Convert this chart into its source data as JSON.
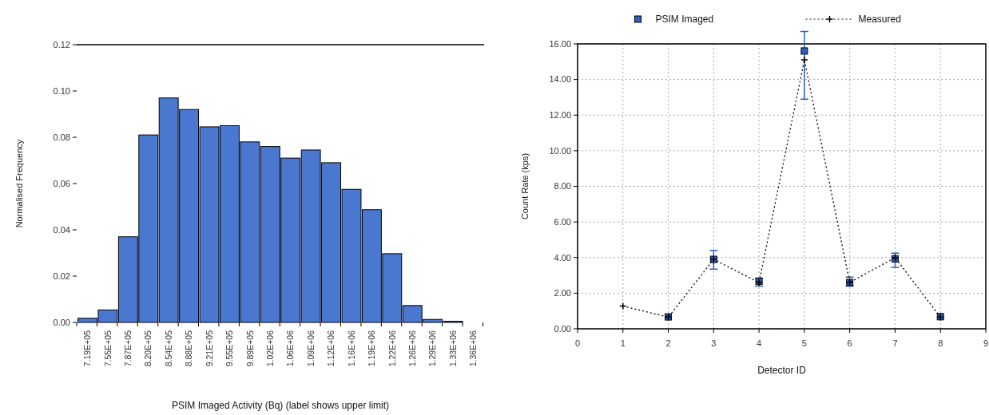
{
  "chart_data": [
    {
      "type": "bar",
      "xlabel": "PSIM Imaged Activity (Bq)  (label shows upper limit)",
      "ylabel": "Normalised Frequency",
      "categories": [
        "7.19E+05",
        "7.55E+05",
        "7.87E+05",
        "8.20E+05",
        "8.54E+05",
        "8.88E+05",
        "9.21E+05",
        "9.55E+05",
        "9.89E+05",
        "1.02E+06",
        "1.06E+06",
        "1.09E+06",
        "1.12E+06",
        "1.16E+06",
        "1.19E+06",
        "1.22E+06",
        "1.26E+06",
        "1.29E+06",
        "1.33E+06",
        "1.36E+06"
      ],
      "values": [
        0.0018,
        0.0054,
        0.037,
        0.081,
        0.097,
        0.092,
        0.0845,
        0.085,
        0.078,
        0.076,
        0.071,
        0.0745,
        0.069,
        0.0575,
        0.0487,
        0.0297,
        0.0073,
        0.0013,
        0.0005,
        0
      ],
      "color": "#4a78d0",
      "ylim": [
        0,
        0.12
      ],
      "yticks": [
        {
          "value": 0,
          "label": "0.00"
        },
        {
          "value": 0.02,
          "label": "0.02"
        },
        {
          "value": 0.04,
          "label": "0.04"
        },
        {
          "value": 0.06,
          "label": "0.06"
        },
        {
          "value": 0.08,
          "label": "0.08"
        },
        {
          "value": 0.1,
          "label": "0.10"
        },
        {
          "value": 0.12,
          "label": "0.12"
        }
      ],
      "grid": false
    },
    {
      "type": "scatter",
      "xlabel": "Detector ID",
      "ylabel": "Count Rate (kps)",
      "legend": "top",
      "x": [
        1,
        2,
        3,
        4,
        5,
        6,
        7,
        8
      ],
      "series": [
        {
          "name": "PSIM Imaged",
          "type": "scatter",
          "color": "#2e5fbf",
          "marker": "square",
          "values": [
            null,
            0.67,
            3.9,
            2.67,
            15.6,
            2.6,
            3.93,
            0.68
          ],
          "errors": [
            null,
            null,
            [
              3.35,
              4.4
            ],
            [
              2.4,
              2.85
            ],
            [
              12.9,
              16.7
            ],
            [
              2.4,
              2.9
            ],
            [
              3.45,
              4.25
            ],
            null
          ]
        },
        {
          "name": "Measured",
          "type": "line",
          "color": "#000000",
          "marker": "cross",
          "line_style": "dotted",
          "values": [
            1.28,
            0.65,
            3.9,
            2.6,
            15.1,
            2.6,
            4.0,
            0.65
          ]
        }
      ],
      "xlim": [
        0,
        9
      ],
      "xticks": [
        0,
        1,
        2,
        3,
        4,
        5,
        6,
        7,
        8,
        9
      ],
      "ylim": [
        0,
        16
      ],
      "yticks": [
        {
          "value": 0,
          "label": "0.00"
        },
        {
          "value": 2,
          "label": "2.00"
        },
        {
          "value": 4,
          "label": "4.00"
        },
        {
          "value": 6,
          "label": "6.00"
        },
        {
          "value": 8,
          "label": "8.00"
        },
        {
          "value": 10,
          "label": "10.00"
        },
        {
          "value": 12,
          "label": "12.00"
        },
        {
          "value": 14,
          "label": "14.00"
        },
        {
          "value": 16,
          "label": "16.00"
        }
      ],
      "grid": true
    }
  ]
}
